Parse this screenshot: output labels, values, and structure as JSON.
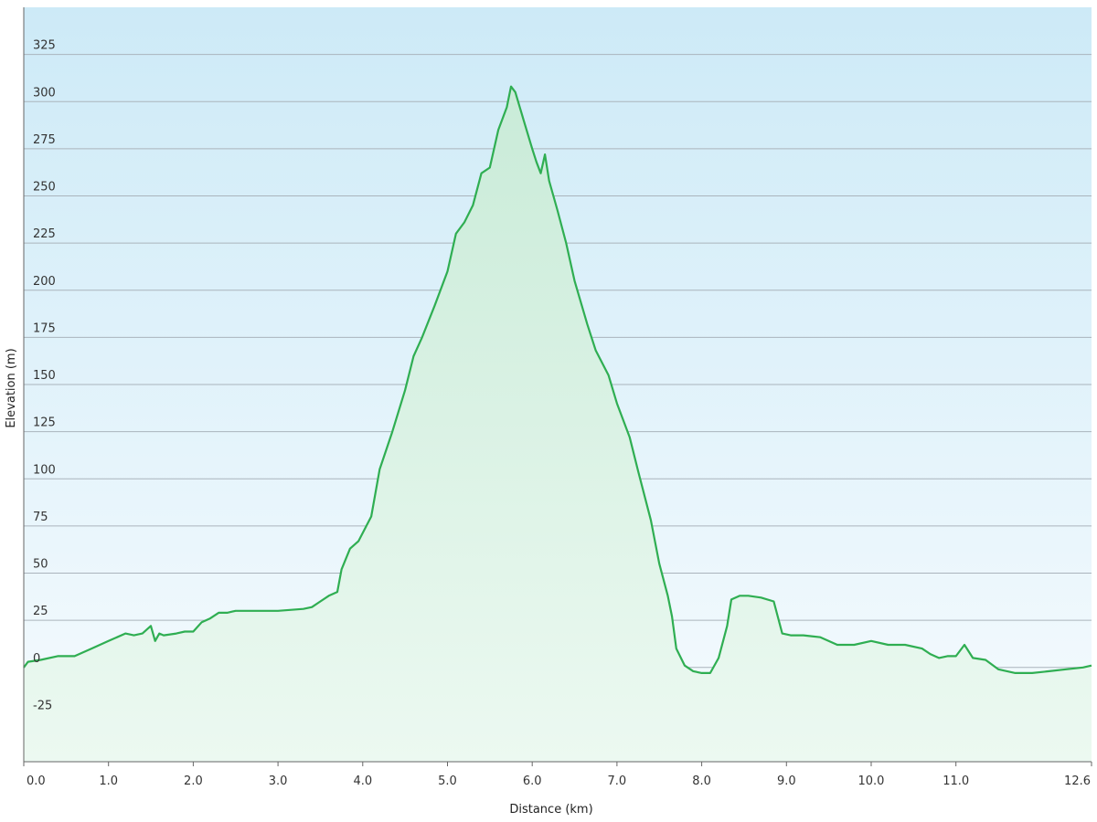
{
  "chart_data": {
    "type": "area",
    "xlabel": "Distance  (km)",
    "ylabel": "Elevation (m)",
    "xlim": [
      0.0,
      12.6
    ],
    "ylim": [
      -50,
      350
    ],
    "grid": true,
    "x_ticks": [
      0.0,
      1.0,
      2.0,
      3.0,
      4.0,
      5.0,
      6.0,
      7.0,
      8.0,
      9.0,
      10.0,
      11.0,
      12.6
    ],
    "x_tick_labels": [
      "0.0",
      "1.0",
      "2.0",
      "3.0",
      "4.0",
      "5.0",
      "6.0",
      "7.0",
      "8.0",
      "9.0",
      "10.0",
      "11.0",
      "12.6"
    ],
    "y_ticks": [
      -25,
      0,
      25,
      50,
      75,
      100,
      125,
      150,
      175,
      200,
      225,
      250,
      275,
      300,
      325
    ],
    "y_tick_labels": [
      "-25",
      "0",
      "25",
      "50",
      "75",
      "100",
      "125",
      "150",
      "175",
      "200",
      "225",
      "250",
      "275",
      "300",
      "325"
    ],
    "colors": {
      "line": "#2fae52",
      "fill_top": "#c9ebd8",
      "fill_bottom": "#ecf9f1",
      "bg_top": "#cdeaf7",
      "bg_bottom": "#f6fbfe",
      "grid": "#aab4bc",
      "axis": "#666666"
    },
    "series": [
      {
        "x": [
          0.0,
          0.05,
          0.2,
          0.4,
          0.6,
          0.8,
          1.0,
          1.2,
          1.3,
          1.4,
          1.5,
          1.55,
          1.6,
          1.65,
          1.8,
          1.9,
          2.0,
          2.1,
          2.2,
          2.3,
          2.4,
          2.5,
          2.7,
          3.0,
          3.3,
          3.4,
          3.5,
          3.6,
          3.7,
          3.75,
          3.85,
          3.95,
          4.1,
          4.2,
          4.35,
          4.5,
          4.6,
          4.7,
          4.85,
          5.0,
          5.1,
          5.2,
          5.3,
          5.4,
          5.5,
          5.6,
          5.7,
          5.75,
          5.8,
          5.9,
          6.0,
          6.05,
          6.1,
          6.15,
          6.2,
          6.3,
          6.4,
          6.5,
          6.65,
          6.75,
          6.9,
          7.0,
          7.15,
          7.25,
          7.4,
          7.5,
          7.6,
          7.65,
          7.7,
          7.8,
          7.9,
          8.0,
          8.1,
          8.2,
          8.3,
          8.35,
          8.45,
          8.55,
          8.7,
          8.85,
          8.95,
          9.05,
          9.2,
          9.4,
          9.6,
          9.8,
          10.0,
          10.2,
          10.4,
          10.6,
          10.7,
          10.8,
          10.9,
          11.0,
          11.1,
          11.2,
          11.35,
          11.5,
          11.7,
          11.9,
          12.1,
          12.3,
          12.5,
          12.6
        ],
        "y": [
          0,
          3,
          4,
          6,
          6,
          10,
          14,
          18,
          17,
          18,
          22,
          14,
          18,
          17,
          18,
          19,
          19,
          24,
          26,
          29,
          29,
          30,
          30,
          30,
          31,
          32,
          35,
          38,
          40,
          52,
          63,
          67,
          80,
          105,
          125,
          147,
          165,
          175,
          192,
          210,
          230,
          236,
          245,
          262,
          265,
          285,
          297,
          308,
          305,
          290,
          275,
          268,
          262,
          272,
          258,
          242,
          225,
          205,
          182,
          168,
          155,
          140,
          122,
          104,
          78,
          55,
          38,
          27,
          10,
          1,
          -2,
          -3,
          -3,
          5,
          22,
          36,
          38,
          38,
          37,
          35,
          18,
          17,
          17,
          16,
          12,
          12,
          14,
          12,
          12,
          10,
          7,
          5,
          6,
          6,
          12,
          5,
          4,
          -1,
          -3,
          -3,
          -2,
          -1,
          0,
          1
        ]
      }
    ]
  }
}
